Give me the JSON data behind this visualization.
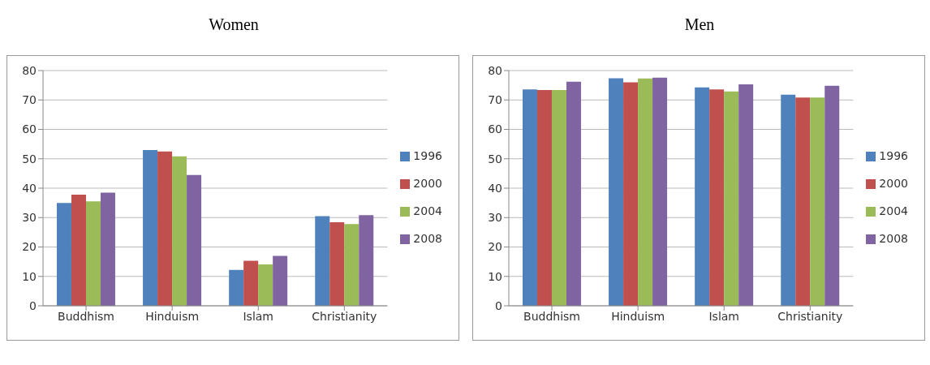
{
  "chart_data": [
    {
      "type": "bar",
      "title": "Women",
      "categories": [
        "Buddhism",
        "Hinduism",
        "Islam",
        "Christianity"
      ],
      "series": [
        {
          "name": "1996",
          "color": "#4f81bd",
          "values": [
            35,
            53,
            12.2,
            30.5
          ]
        },
        {
          "name": "2000",
          "color": "#c0504d",
          "values": [
            37.8,
            52.5,
            15.3,
            28.4
          ]
        },
        {
          "name": "2004",
          "color": "#9bbb59",
          "values": [
            35.5,
            50.8,
            14.1,
            27.8
          ]
        },
        {
          "name": "2008",
          "color": "#8064a2",
          "values": [
            38.5,
            44.5,
            17,
            30.8
          ]
        }
      ],
      "ylim": [
        0,
        80
      ],
      "yticks": [
        0,
        10,
        20,
        30,
        40,
        50,
        60,
        70,
        80
      ],
      "grid": "y",
      "legend": "right"
    },
    {
      "type": "bar",
      "title": "Men",
      "categories": [
        "Buddhism",
        "Hinduism",
        "Islam",
        "Christianity"
      ],
      "series": [
        {
          "name": "1996",
          "color": "#4f81bd",
          "values": [
            73.6,
            77.4,
            74.3,
            71.8
          ]
        },
        {
          "name": "2000",
          "color": "#c0504d",
          "values": [
            73.4,
            76,
            73.6,
            70.8
          ]
        },
        {
          "name": "2004",
          "color": "#9bbb59",
          "values": [
            73.4,
            77.3,
            72.9,
            70.8
          ]
        },
        {
          "name": "2008",
          "color": "#8064a2",
          "values": [
            76.2,
            77.6,
            75.3,
            74.8
          ]
        }
      ],
      "ylim": [
        0,
        80
      ],
      "yticks": [
        0,
        10,
        20,
        30,
        40,
        50,
        60,
        70,
        80
      ],
      "grid": "y",
      "legend": "right"
    }
  ]
}
